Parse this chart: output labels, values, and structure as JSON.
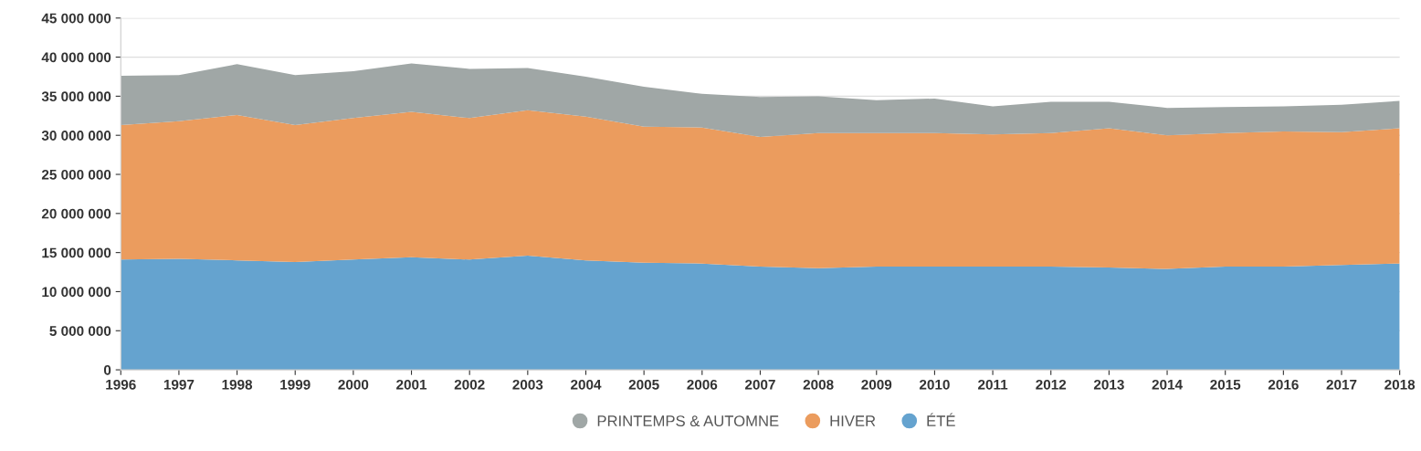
{
  "chart_data": {
    "type": "area",
    "stacked": true,
    "x": [
      1996,
      1997,
      1998,
      1999,
      2000,
      2001,
      2002,
      2003,
      2004,
      2005,
      2006,
      2007,
      2008,
      2009,
      2010,
      2011,
      2012,
      2013,
      2014,
      2015,
      2016,
      2017,
      2018
    ],
    "series": [
      {
        "name": "ÉTÉ",
        "color": "#65a3cf",
        "values": [
          14100000,
          14200000,
          14000000,
          13800000,
          14100000,
          14400000,
          14100000,
          14600000,
          14000000,
          13700000,
          13600000,
          13200000,
          13000000,
          13200000,
          13200000,
          13200000,
          13200000,
          13100000,
          12900000,
          13200000,
          13200000,
          13400000,
          13600000
        ]
      },
      {
        "name": "HIVER",
        "color": "#eb9c5e",
        "values": [
          17200000,
          17600000,
          18600000,
          17500000,
          18100000,
          18600000,
          18100000,
          18600000,
          18400000,
          17400000,
          17400000,
          16600000,
          17300000,
          17100000,
          17100000,
          16900000,
          17100000,
          17800000,
          17100000,
          17100000,
          17300000,
          17000000,
          17300000
        ]
      },
      {
        "name": "PRINTEMPS & AUTOMNE",
        "color": "#a0a7a6",
        "values": [
          6300000,
          5900000,
          6500000,
          6400000,
          6000000,
          6200000,
          6300000,
          5400000,
          5100000,
          5100000,
          4300000,
          5100000,
          4700000,
          4200000,
          4400000,
          3600000,
          4000000,
          3400000,
          3500000,
          3300000,
          3200000,
          3500000,
          3500000
        ]
      }
    ],
    "xlim": [
      1996,
      2018
    ],
    "xticks": [
      1996,
      1997,
      1998,
      1999,
      2000,
      2001,
      2002,
      2003,
      2004,
      2005,
      2006,
      2007,
      2008,
      2009,
      2010,
      2011,
      2012,
      2013,
      2014,
      2015,
      2016,
      2017,
      2018
    ],
    "ylim": [
      0,
      45000000
    ],
    "yticks": [
      {
        "value": 0,
        "label": "0"
      },
      {
        "value": 5000000,
        "label": "5 000 000"
      },
      {
        "value": 10000000,
        "label": "10 000 000"
      },
      {
        "value": 15000000,
        "label": "15 000 000"
      },
      {
        "value": 20000000,
        "label": "20 000 000"
      },
      {
        "value": 25000000,
        "label": "25 000 000"
      },
      {
        "value": 30000000,
        "label": "30 000 000"
      },
      {
        "value": 35000000,
        "label": "35 000 000"
      },
      {
        "value": 40000000,
        "label": "40 000 000"
      },
      {
        "value": 45000000,
        "label": "45 000 000"
      }
    ],
    "grid": "y",
    "legend": "bottom"
  }
}
